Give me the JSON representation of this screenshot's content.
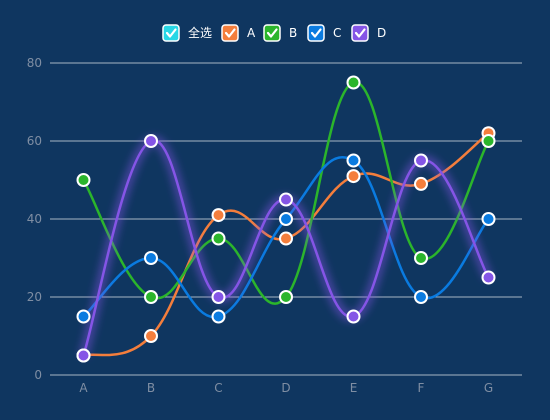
{
  "legend": {
    "select_all_label": "全选",
    "select_all_color": "#27d7e6"
  },
  "chart_data": {
    "type": "line",
    "categories": [
      "A",
      "B",
      "C",
      "D",
      "E",
      "F",
      "G"
    ],
    "ylim": [
      0,
      80
    ],
    "yticks": [
      0,
      20,
      40,
      60,
      80
    ],
    "grid": true,
    "smooth": true,
    "legend_position": "top-center",
    "series": [
      {
        "name": "A",
        "color": "#f47e3c",
        "values": [
          5,
          10,
          41,
          35,
          51,
          49,
          62
        ]
      },
      {
        "name": "B",
        "color": "#2bb52b",
        "values": [
          50,
          20,
          35,
          20,
          75,
          30,
          60
        ]
      },
      {
        "name": "C",
        "color": "#0a7be0",
        "values": [
          15,
          30,
          15,
          40,
          55,
          20,
          40
        ]
      },
      {
        "name": "D",
        "color": "#8555e6",
        "values": [
          5,
          60,
          20,
          45,
          15,
          55,
          25
        ]
      }
    ]
  }
}
